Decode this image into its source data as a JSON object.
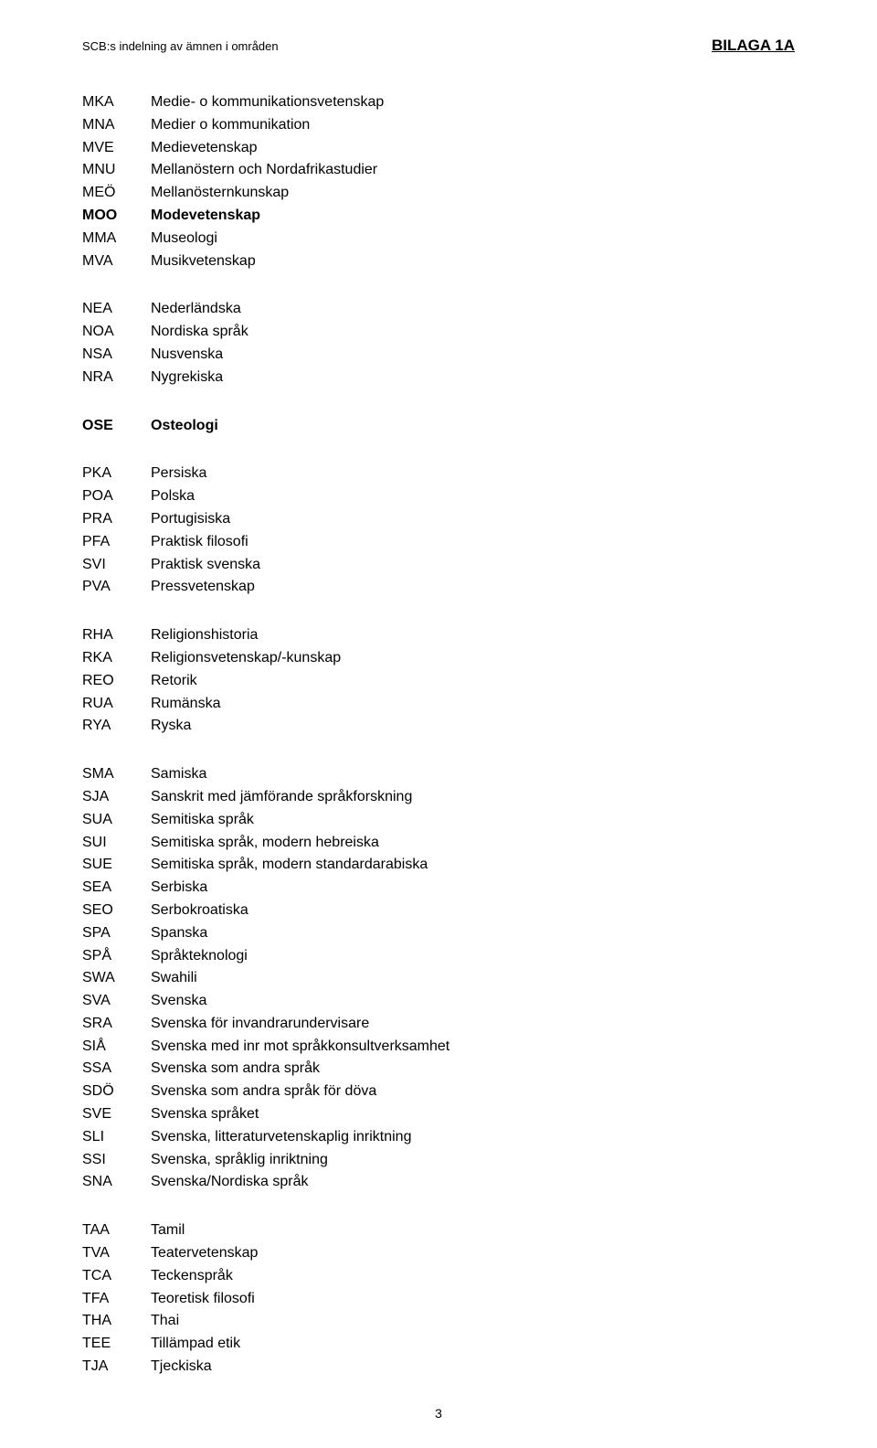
{
  "header": {
    "left": "SCB:s indelning av ämnen i områden",
    "right": "BILAGA 1A"
  },
  "page_number": "3",
  "font": {
    "body_size": 16,
    "header_left_size": 13,
    "header_right_size": 17
  },
  "colors": {
    "text": "#000000",
    "background": "#ffffff"
  },
  "groups": [
    {
      "id": "m",
      "rows": [
        {
          "code": "MKA",
          "desc": "Medie- o kommunikationsvetenskap",
          "bold": false
        },
        {
          "code": "MNA",
          "desc": "Medier o kommunikation",
          "bold": false
        },
        {
          "code": "MVE",
          "desc": "Medievetenskap",
          "bold": false
        },
        {
          "code": "MNU",
          "desc": "Mellanöstern och Nordafrikastudier",
          "bold": false
        },
        {
          "code": "MEÖ",
          "desc": "Mellanösternkunskap",
          "bold": false
        },
        {
          "code": "MOO",
          "desc": "Modevetenskap",
          "bold": true
        },
        {
          "code": "MMA",
          "desc": "Museologi",
          "bold": false
        },
        {
          "code": "MVA",
          "desc": "Musikvetenskap",
          "bold": false
        }
      ]
    },
    {
      "id": "n",
      "rows": [
        {
          "code": "NEA",
          "desc": "Nederländska",
          "bold": false
        },
        {
          "code": "NOA",
          "desc": "Nordiska språk",
          "bold": false
        },
        {
          "code": "NSA",
          "desc": "Nusvenska",
          "bold": false
        },
        {
          "code": "NRA",
          "desc": "Nygrekiska",
          "bold": false
        }
      ]
    },
    {
      "id": "o",
      "rows": [
        {
          "code": "OSE",
          "desc": "Osteologi",
          "bold": true
        }
      ]
    },
    {
      "id": "p",
      "rows": [
        {
          "code": "PKA",
          "desc": "Persiska",
          "bold": false
        },
        {
          "code": "POA",
          "desc": "Polska",
          "bold": false
        },
        {
          "code": "PRA",
          "desc": "Portugisiska",
          "bold": false
        },
        {
          "code": "PFA",
          "desc": "Praktisk filosofi",
          "bold": false
        },
        {
          "code": "SVI",
          "desc": "Praktisk svenska",
          "bold": false
        },
        {
          "code": "PVA",
          "desc": "Pressvetenskap",
          "bold": false
        }
      ]
    },
    {
      "id": "r",
      "rows": [
        {
          "code": "RHA",
          "desc": "Religionshistoria",
          "bold": false
        },
        {
          "code": "RKA",
          "desc": "Religionsvetenskap/-kunskap",
          "bold": false
        },
        {
          "code": "REO",
          "desc": "Retorik",
          "bold": false
        },
        {
          "code": "RUA",
          "desc": "Rumänska",
          "bold": false
        },
        {
          "code": "RYA",
          "desc": "Ryska",
          "bold": false
        }
      ]
    },
    {
      "id": "s",
      "rows": [
        {
          "code": "SMA",
          "desc": "Samiska",
          "bold": false
        },
        {
          "code": "SJA",
          "desc": "Sanskrit med jämförande språkforskning",
          "bold": false
        },
        {
          "code": "SUA",
          "desc": "Semitiska språk",
          "bold": false
        },
        {
          "code": "SUI",
          "desc": "Semitiska språk, modern hebreiska",
          "bold": false
        },
        {
          "code": "SUE",
          "desc": "Semitiska språk, modern standardarabiska",
          "bold": false
        },
        {
          "code": "SEA",
          "desc": "Serbiska",
          "bold": false
        },
        {
          "code": "SEO",
          "desc": "Serbokroatiska",
          "bold": false
        },
        {
          "code": "SPA",
          "desc": "Spanska",
          "bold": false
        },
        {
          "code": "SPÅ",
          "desc": "Språkteknologi",
          "bold": false
        },
        {
          "code": "SWA",
          "desc": "Swahili",
          "bold": false
        },
        {
          "code": "SVA",
          "desc": "Svenska",
          "bold": false
        },
        {
          "code": "SRA",
          "desc": "Svenska för invandrarundervisare",
          "bold": false
        },
        {
          "code": "SIÅ",
          "desc": "Svenska med inr mot språkkonsultverksamhet",
          "bold": false
        },
        {
          "code": "SSA",
          "desc": "Svenska som andra språk",
          "bold": false
        },
        {
          "code": "SDÖ",
          "desc": "Svenska som andra språk för döva",
          "bold": false
        },
        {
          "code": "SVE",
          "desc": "Svenska språket",
          "bold": false
        },
        {
          "code": "SLI",
          "desc": "Svenska, litteraturvetenskaplig inriktning",
          "bold": false
        },
        {
          "code": "SSI",
          "desc": "Svenska, språklig inriktning",
          "bold": false
        },
        {
          "code": "SNA",
          "desc": "Svenska/Nordiska språk",
          "bold": false
        }
      ]
    },
    {
      "id": "t",
      "rows": [
        {
          "code": "TAA",
          "desc": "Tamil",
          "bold": false
        },
        {
          "code": "TVA",
          "desc": "Teatervetenskap",
          "bold": false
        },
        {
          "code": "TCA",
          "desc": "Teckenspråk",
          "bold": false
        },
        {
          "code": "TFA",
          "desc": "Teoretisk filosofi",
          "bold": false
        },
        {
          "code": "THA",
          "desc": "Thai",
          "bold": false
        },
        {
          "code": "TEE",
          "desc": "Tillämpad etik",
          "bold": false
        },
        {
          "code": "TJA",
          "desc": "Tjeckiska",
          "bold": false
        }
      ]
    }
  ]
}
